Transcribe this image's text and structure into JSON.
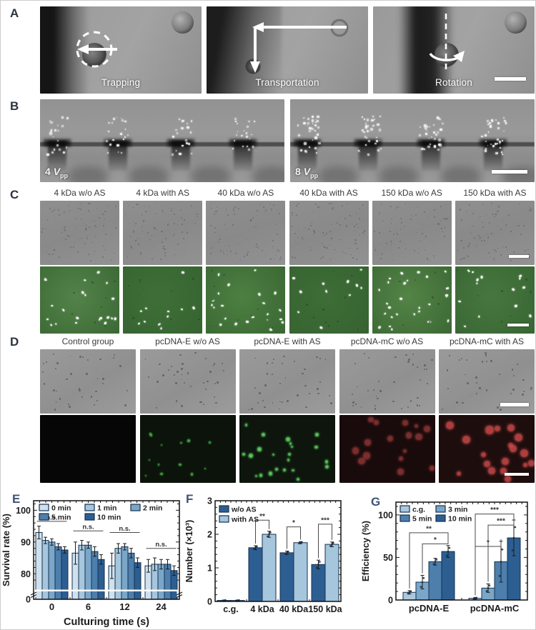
{
  "panels": {
    "A": {
      "letter": "A",
      "tiles": [
        {
          "caption": "Trapping"
        },
        {
          "caption": "Transportation"
        },
        {
          "caption": "Rotation"
        }
      ]
    },
    "B": {
      "letter": "B",
      "tiles": [
        {
          "prefix": "4 ",
          "symbol": "V",
          "sub": "pp"
        },
        {
          "prefix": "8 ",
          "symbol": "V",
          "sub": "pp"
        }
      ]
    },
    "C": {
      "letter": "C",
      "headers": [
        "4 kDa w/o AS",
        "4 kDa with AS",
        "40 kDa w/o AS",
        "40 kDa with AS",
        "150 kDa w/o AS",
        "150 kDa with AS"
      ]
    },
    "D": {
      "letter": "D",
      "headers": [
        "Control group",
        "pcDNA-E w/o AS",
        "pcDNA-E with AS",
        "pcDNA-mC w/o AS",
        "pcDNA-mC with AS"
      ]
    },
    "E": {
      "letter": "E"
    },
    "F": {
      "letter": "F"
    },
    "G": {
      "letter": "G"
    }
  },
  "chart_data": [
    {
      "id": "E",
      "type": "bar",
      "ylabel": "Survival rate (%)",
      "xlabel": "Culturing time (s)",
      "categories": [
        "0",
        "6",
        "12",
        "24"
      ],
      "series": [
        {
          "name": "0 min",
          "color": "#cfe1ee",
          "values": [
            93,
            86.5,
            82.5,
            82.5
          ],
          "errors": [
            2,
            3.5,
            4,
            2
          ]
        },
        {
          "name": "1 min",
          "color": "#a5c6dd",
          "values": [
            90.5,
            89,
            88,
            83
          ],
          "errors": [
            1,
            1.5,
            1.5,
            2
          ]
        },
        {
          "name": "2 min",
          "color": "#7aa7c9",
          "values": [
            90,
            89,
            88.5,
            83
          ],
          "errors": [
            1,
            1,
            1,
            1.5
          ]
        },
        {
          "name": "5 min",
          "color": "#4d7fad",
          "values": [
            88.5,
            87,
            86.5,
            83
          ],
          "errors": [
            1,
            1.5,
            1.5,
            1.5
          ]
        },
        {
          "name": "10 min",
          "color": "#2d5e92",
          "values": [
            87.5,
            84.5,
            83.5,
            81
          ],
          "errors": [
            1,
            1.5,
            1.5,
            1.5
          ]
        }
      ],
      "ylim": [
        0,
        103
      ],
      "yticks": [
        0,
        80,
        90,
        100
      ],
      "broken_axis": true,
      "break_value": 76,
      "grid": false,
      "legend_position": "top-left",
      "legend_columns": 3,
      "significance": [
        {
          "group": 0,
          "y": 96.5,
          "label": "n.s."
        },
        {
          "group": 1,
          "y": 93.5,
          "label": "n.s."
        },
        {
          "group": 2,
          "y": 93,
          "label": "n.s."
        },
        {
          "group": 3,
          "y": 88,
          "label": "n.s."
        }
      ]
    },
    {
      "id": "F",
      "type": "bar",
      "ylabel": "Number (×10³)",
      "xlabel": "",
      "categories": [
        "c.g.",
        "4 kDa",
        "40 kDa",
        "150 kDa"
      ],
      "series": [
        {
          "name": "w/o AS",
          "color": "#2d5e92",
          "values": [
            0.03,
            1.6,
            1.45,
            1.1
          ],
          "errors": [
            0.01,
            0.06,
            0.05,
            0.13
          ]
        },
        {
          "name": "with AS",
          "color": "#a5c6dd",
          "values": [
            0.03,
            2.0,
            1.75,
            1.7
          ],
          "errors": [
            0.01,
            0.09,
            0.03,
            0.07
          ]
        }
      ],
      "ylim": [
        0,
        3
      ],
      "yticks": [
        0,
        1,
        2,
        3
      ],
      "broken_axis": false,
      "grid": false,
      "legend_position": "top-left",
      "legend_columns": 1,
      "significance": [
        {
          "group": 1,
          "pair": [
            0,
            1
          ],
          "y": 2.42,
          "label": "**"
        },
        {
          "group": 2,
          "pair": [
            0,
            1
          ],
          "y": 2.22,
          "label": "*"
        },
        {
          "group": 3,
          "pair": [
            0,
            1
          ],
          "y": 2.3,
          "label": "***"
        }
      ]
    },
    {
      "id": "G",
      "type": "bar",
      "ylabel": "Efficiency (%)",
      "xlabel": "",
      "categories": [
        "pcDNA-E",
        "pcDNA-mC"
      ],
      "series": [
        {
          "name": "c.g.",
          "color": "#abc9de",
          "values": [
            9,
            2
          ],
          "errors": [
            2,
            1
          ]
        },
        {
          "name": "3 min",
          "color": "#7aa7c9",
          "values": [
            21,
            14
          ],
          "errors": [
            8,
            5
          ]
        },
        {
          "name": "5 min",
          "color": "#4d7fad",
          "values": [
            45,
            45
          ],
          "errors": [
            4,
            24
          ]
        },
        {
          "name": "10 min",
          "color": "#2d5e92",
          "values": [
            57,
            73
          ],
          "errors": [
            7,
            21
          ]
        }
      ],
      "ylim": [
        0,
        115
      ],
      "yticks": [
        0,
        50,
        100
      ],
      "broken_axis": false,
      "grid": false,
      "legend_position": "top-left",
      "legend_columns": 2,
      "significance": [
        {
          "group": 0,
          "pair": [
            1,
            3
          ],
          "y": 66,
          "label": "*"
        },
        {
          "group": 0,
          "pair": [
            0,
            3
          ],
          "y": 79,
          "label": "**"
        },
        {
          "group": 1,
          "pair": [
            0,
            2
          ],
          "y": 63,
          "label": "*"
        },
        {
          "group": 1,
          "pair": [
            1,
            3
          ],
          "y": 88,
          "label": "***"
        },
        {
          "group": 1,
          "pair": [
            0,
            3
          ],
          "y": 101,
          "label": "***"
        }
      ]
    }
  ]
}
